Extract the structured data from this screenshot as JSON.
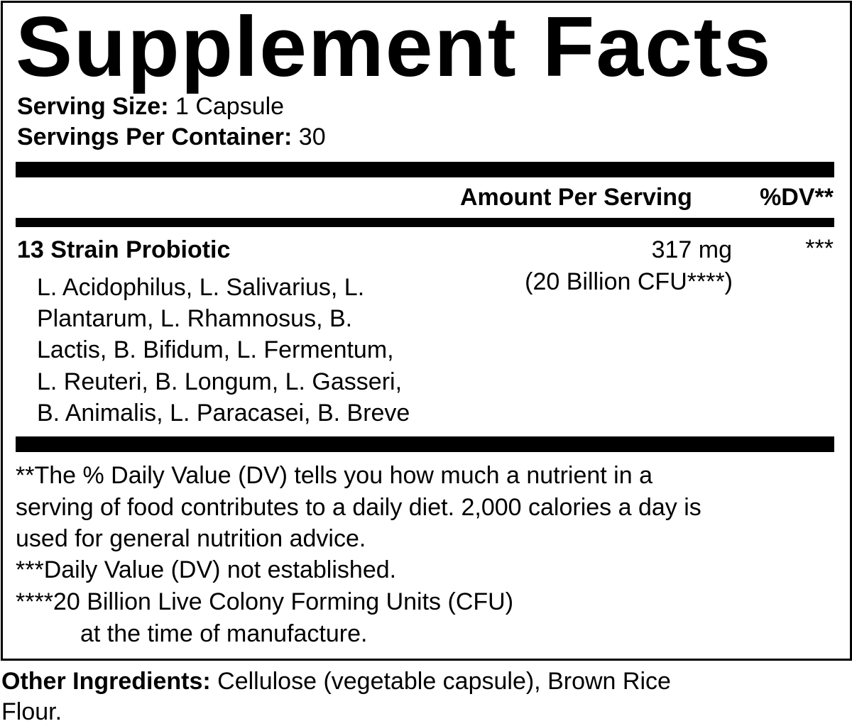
{
  "title": "Supplement Facts",
  "serving": {
    "size_label": "Serving Size:",
    "size_value": " 1 Capsule",
    "per_container_label": "Servings Per Container:",
    "per_container_value": " 30"
  },
  "header": {
    "amount": "Amount Per Serving",
    "dv": "%DV**"
  },
  "ingredient": {
    "name": "13 Strain Probiotic",
    "amount": "317 mg",
    "cfu": "(20 Billion CFU****)",
    "dv": "***",
    "strains": [
      "L. Acidophilus, L. Salivarius, L.",
      "Plantarum, L. Rhamnosus, B.",
      "Lactis, B. Bifidum, L. Fermentum,",
      "L. Reuteri, B. Longum, L. Gasseri,",
      "B. Animalis, L. Paracasei, B. Breve"
    ]
  },
  "footnotes": [
    "**The % Daily Value (DV) tells you how much a nutrient in a",
    "serving of food contributes to a daily diet. 2,000 calories a day is",
    "used for general nutrition advice.",
    "***Daily Value (DV) not established.",
    "****20 Billion Live Colony Forming Units (CFU)",
    "at the time of manufacture."
  ],
  "other": {
    "label": "Other Ingredients:",
    "line1": " Cellulose (vegetable capsule), Brown Rice",
    "line2": "Flour."
  }
}
